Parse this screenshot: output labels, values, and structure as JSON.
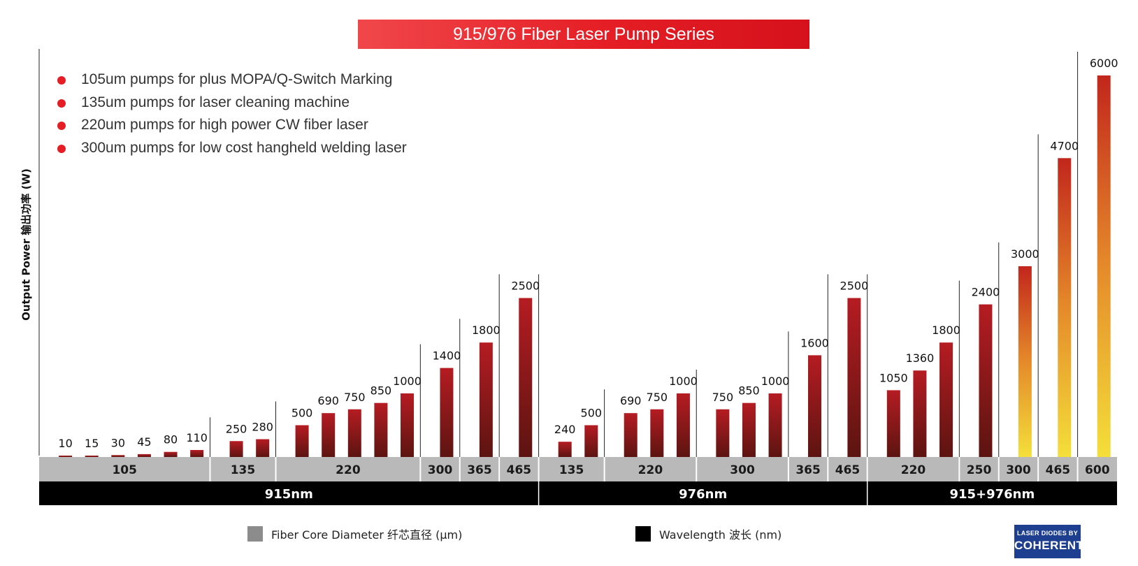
{
  "colors": {
    "banner": "#e51e25",
    "bullet": "#e51e25",
    "bar_top": "#b51c22",
    "bar_bottom": "#5c1411",
    "bar_yellow_top": "#c2261c",
    "bar_yellow_bottom": "#f4df3a",
    "fiber_band": "#b9b9b9",
    "wavelength_band": "#000000",
    "brand": "#1e3f8f"
  },
  "notes": [
    "105um pumps for plus MOPA/Q-Switch Marking",
    "135um pumps for laser cleaning machine",
    "220um pumps for high power CW fiber laser",
    "300um pumps for low cost hangheld welding laser"
  ],
  "legend": {
    "fiber": "Fiber Core Diameter  纤芯直径 (μm)",
    "wavelength": "Wavelength  波长 (nm)"
  },
  "brand": {
    "line1": "LASER DIODES BY",
    "line2": "COHERENT"
  },
  "chart_data": {
    "type": "bar",
    "title": "915/976 Fiber Laser Pump Series",
    "ylabel": "Output Power  输出功率 (W)",
    "xlabel": "",
    "ylim": [
      0,
      6000
    ],
    "values": [
      10,
      15,
      30,
      45,
      80,
      110,
      250,
      280,
      500,
      690,
      750,
      850,
      1000,
      1400,
      1800,
      2500,
      240,
      500,
      690,
      750,
      1000,
      750,
      850,
      1000,
      1600,
      2500,
      1050,
      1360,
      1800,
      2400,
      3000,
      4700,
      6000
    ],
    "value_labels": [
      "10",
      "15",
      "30",
      "45",
      "80",
      "110",
      "250",
      "280",
      "500",
      "690",
      "750",
      "850",
      "1000",
      "1400",
      "1800",
      "2500",
      "240",
      "500",
      "690",
      "750",
      "1000",
      "750",
      "850",
      "1000",
      "1600",
      "2500",
      "1050",
      "1360",
      "1800",
      "2400",
      "3000",
      "4700",
      "6000"
    ],
    "yellow_bars": [
      30,
      31,
      32
    ],
    "fiber_groups": [
      {
        "label": "105",
        "bars": 6
      },
      {
        "label": "135",
        "bars": 2
      },
      {
        "label": "220",
        "bars": 5
      },
      {
        "label": "300",
        "bars": 1
      },
      {
        "label": "365",
        "bars": 1
      },
      {
        "label": "465",
        "bars": 1
      },
      {
        "label": "135",
        "bars": 2
      },
      {
        "label": "220",
        "bars": 3
      },
      {
        "label": "300",
        "bars": 3
      },
      {
        "label": "365",
        "bars": 1
      },
      {
        "label": "465",
        "bars": 1
      },
      {
        "label": "220",
        "bars": 3
      },
      {
        "label": "250",
        "bars": 1
      },
      {
        "label": "300",
        "bars": 1
      },
      {
        "label": "465",
        "bars": 1
      },
      {
        "label": "600",
        "bars": 1
      }
    ],
    "wavelength_groups": [
      {
        "label": "915nm",
        "fiber_groups": 6
      },
      {
        "label": "976nm",
        "fiber_groups": 5
      },
      {
        "label": "915+976nm",
        "fiber_groups": 5
      }
    ]
  }
}
